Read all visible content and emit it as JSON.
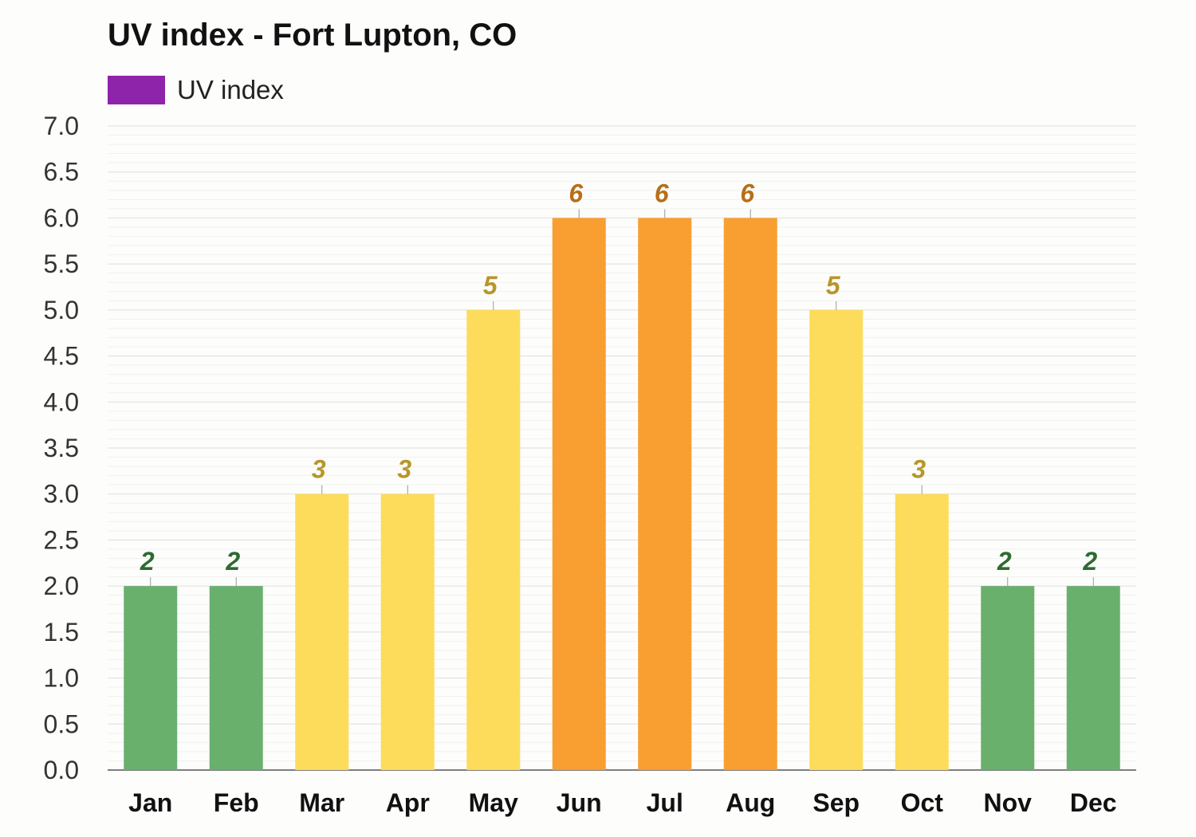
{
  "chart_data": {
    "type": "bar",
    "title": "UV index - Fort Lupton, CO",
    "legend": [
      {
        "label": "UV index",
        "color": "#8e24aa"
      }
    ],
    "legend_placement": "top-left",
    "xlabel": "",
    "ylabel": "",
    "categories": [
      "Jan",
      "Feb",
      "Mar",
      "Apr",
      "May",
      "Jun",
      "Jul",
      "Aug",
      "Sep",
      "Oct",
      "Nov",
      "Dec"
    ],
    "series": [
      {
        "values": [
          2,
          2,
          3,
          3,
          5,
          6,
          6,
          6,
          5,
          3,
          2,
          2
        ]
      }
    ],
    "data_labels": [
      "2",
      "2",
      "3",
      "3",
      "5",
      "6",
      "6",
      "6",
      "5",
      "3",
      "2",
      "2"
    ],
    "ylim": [
      0,
      7
    ],
    "yticks": [
      "0.0",
      "0.5",
      "1.0",
      "1.5",
      "2.0",
      "2.5",
      "3.0",
      "3.5",
      "4.0",
      "4.5",
      "5.0",
      "5.5",
      "6.0",
      "6.5",
      "7.0"
    ],
    "grid": true,
    "color_scale": [
      {
        "max": 2,
        "bar": "#6ab06d",
        "label": "#2e6b32"
      },
      {
        "max": 5,
        "bar": "#fcdc5a",
        "label": "#b8962a"
      },
      {
        "max": 7,
        "bar": "#f99e30",
        "label": "#b86e16"
      }
    ]
  }
}
